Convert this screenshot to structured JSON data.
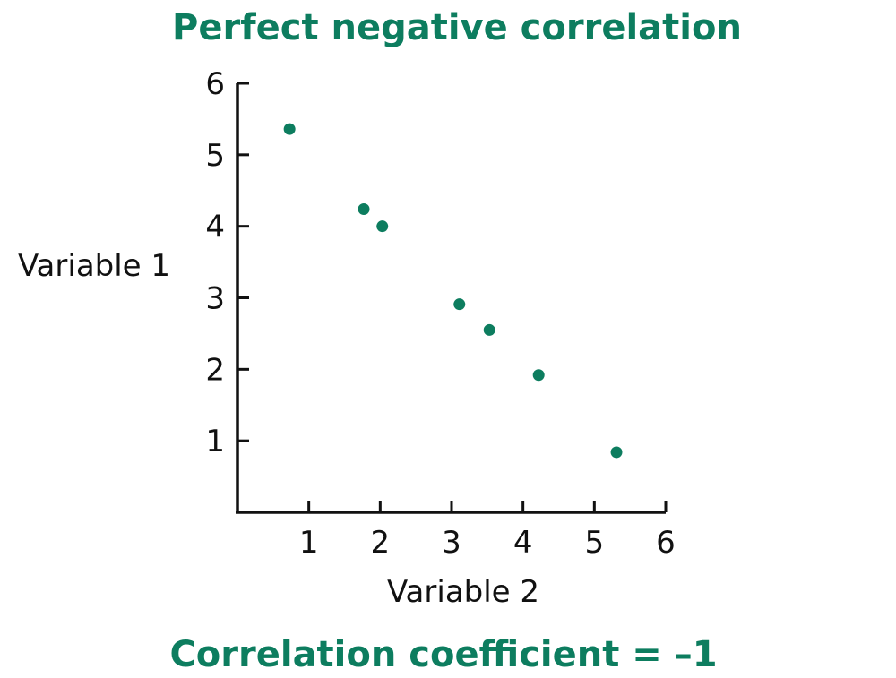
{
  "colors": {
    "accent": "#0d7d5f",
    "axis": "#111111",
    "text": "#111111"
  },
  "footer": "Correlation coefficient = –1",
  "chart_data": {
    "type": "scatter",
    "title": "Perfect negative correlation",
    "xlabel": "Variable 2",
    "ylabel": "Variable 1",
    "xlim": [
      0,
      6
    ],
    "ylim": [
      0,
      6
    ],
    "x_ticks": [
      1,
      2,
      3,
      4,
      5,
      6
    ],
    "y_ticks": [
      1,
      2,
      3,
      4,
      5,
      6
    ],
    "grid": false,
    "series": [
      {
        "points": [
          {
            "x": 0.73,
            "y": 5.36
          },
          {
            "x": 1.77,
            "y": 4.24
          },
          {
            "x": 2.03,
            "y": 4.0
          },
          {
            "x": 3.11,
            "y": 2.91
          },
          {
            "x": 3.53,
            "y": 2.55
          },
          {
            "x": 4.22,
            "y": 1.92
          },
          {
            "x": 5.31,
            "y": 0.84
          }
        ]
      }
    ]
  }
}
